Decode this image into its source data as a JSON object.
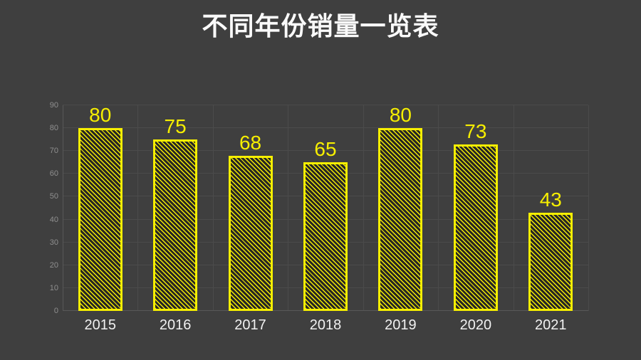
{
  "title": "不同年份销量一览表",
  "chart_data": {
    "type": "bar",
    "title": "不同年份销量一览表",
    "categories": [
      "2015",
      "2016",
      "2017",
      "2018",
      "2019",
      "2020",
      "2021"
    ],
    "values": [
      80,
      75,
      68,
      65,
      80,
      73,
      43
    ],
    "xlabel": "",
    "ylabel": "",
    "ylim": [
      0,
      90
    ],
    "yticks": [
      0,
      10,
      20,
      30,
      40,
      50,
      60,
      70,
      80,
      90
    ],
    "grid": "horizontal and vertical category boundaries",
    "legend": "none",
    "value_labels": "shown above each bar",
    "bar_style": {
      "hatch": "backslash-diagonal",
      "hatch_color": "#f7ef00",
      "face_color": "#252525",
      "border_color": "#f7ef00"
    },
    "colors": {
      "background": "#3f3f3f",
      "gridline": "#4b4b4b",
      "axis_line": "#585858",
      "title_color": "#fafafa",
      "ytick_color": "#8f8f8f",
      "xtick_color": "#f1f1f1",
      "value_label_color": "#f7ef00"
    }
  }
}
